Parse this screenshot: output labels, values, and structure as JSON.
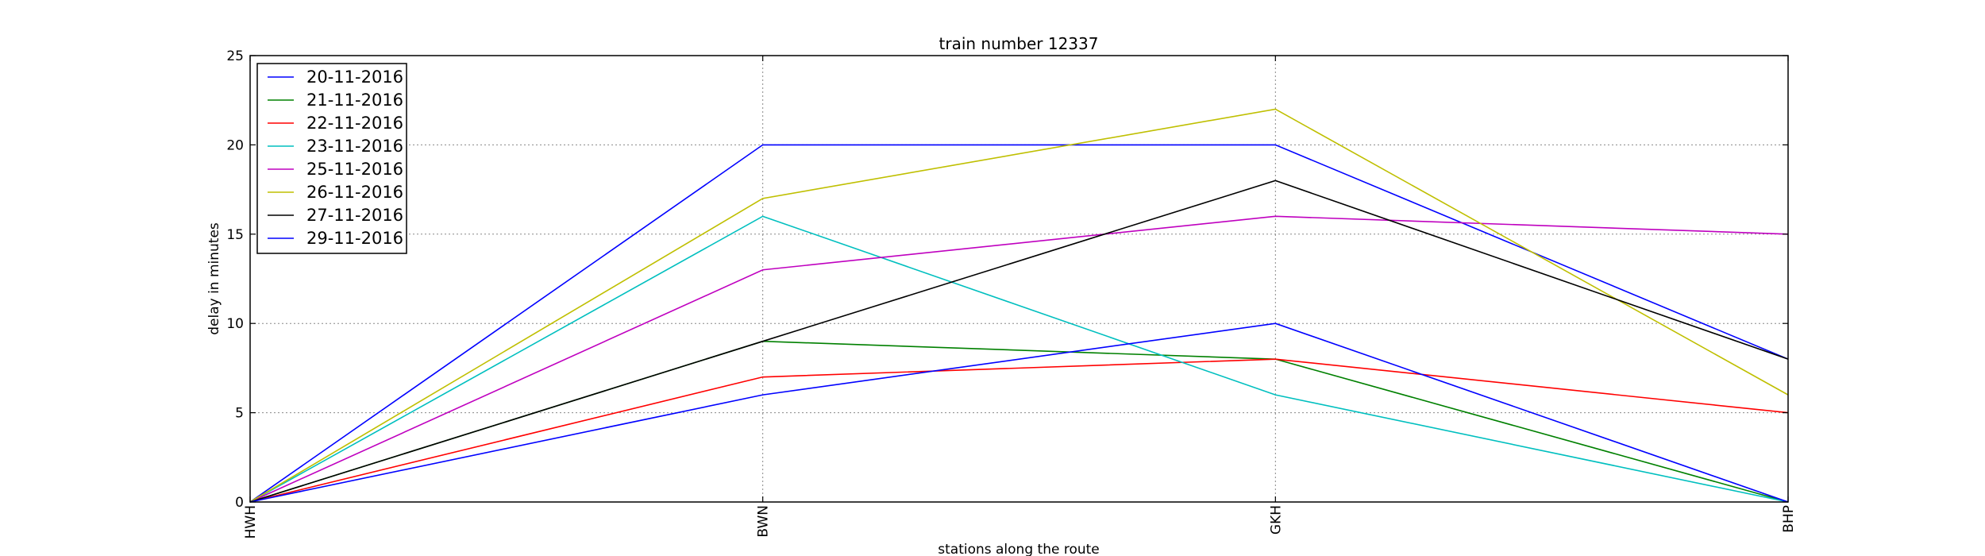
{
  "chart_data": {
    "type": "line",
    "title": "train number 12337",
    "xlabel": "stations along the route",
    "ylabel": "delay in minutes",
    "categories": [
      "HWH",
      "BWN",
      "GKH",
      "BHP"
    ],
    "ylim": [
      0,
      25
    ],
    "yticks": [
      0,
      5,
      10,
      15,
      20,
      25
    ],
    "grid": true,
    "legend_position": "top-left",
    "series": [
      {
        "name": "20-11-2016",
        "color": "#0000ff",
        "values": [
          0,
          20,
          20,
          8
        ]
      },
      {
        "name": "21-11-2016",
        "color": "#008000",
        "values": [
          0,
          9,
          8,
          0
        ]
      },
      {
        "name": "22-11-2016",
        "color": "#ff0000",
        "values": [
          0,
          7,
          8,
          5
        ]
      },
      {
        "name": "23-11-2016",
        "color": "#00bfbf",
        "values": [
          0,
          16,
          6,
          0
        ]
      },
      {
        "name": "25-11-2016",
        "color": "#bf00bf",
        "values": [
          0,
          13,
          16,
          15
        ]
      },
      {
        "name": "26-11-2016",
        "color": "#bfbf00",
        "values": [
          0,
          17,
          22,
          6
        ]
      },
      {
        "name": "27-11-2016",
        "color": "#000000",
        "values": [
          0,
          9,
          18,
          8
        ]
      },
      {
        "name": "29-11-2016",
        "color": "#0000ff",
        "values": [
          0,
          6,
          10,
          0
        ]
      }
    ]
  }
}
